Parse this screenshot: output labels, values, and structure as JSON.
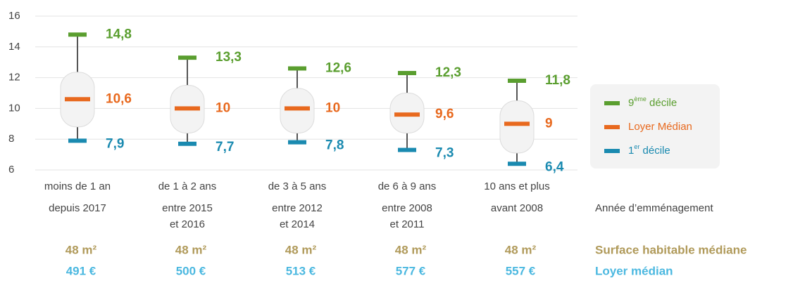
{
  "chart_data": {
    "type": "decile-box",
    "categories": [
      [
        "moins de 1 an",
        "depuis 2017"
      ],
      [
        "de 1 à 2 ans",
        "entre 2015",
        "et 2016"
      ],
      [
        "de 3 à 5 ans",
        "entre 2012",
        "et 2014"
      ],
      [
        "de 6 à 9 ans",
        "entre 2008",
        "et 2011"
      ],
      [
        "10 ans et plus",
        "avant 2008"
      ]
    ],
    "x_label": "Année d’emménagement",
    "ylim": [
      6,
      16
    ],
    "yticks": [
      6,
      8,
      10,
      12,
      14,
      16
    ],
    "grid": true,
    "box_color": "#f3f3f3",
    "q3": [
      12.35,
      11.5,
      11.3,
      11.0,
      10.5
    ],
    "q1": [
      8.8,
      8.4,
      8.4,
      8.4,
      7.1
    ],
    "series": [
      {
        "name": [
          "9",
          "ème",
          " décile"
        ],
        "color": "#5a9e2f",
        "values": [
          14.8,
          13.3,
          12.6,
          12.3,
          11.8
        ],
        "value_labels": [
          "14,8",
          "13,3",
          "12,6",
          "12,3",
          "11,8"
        ]
      },
      {
        "name": [
          "Loyer Médian"
        ],
        "color": "#e8691e",
        "values": [
          10.6,
          10,
          10,
          9.6,
          9
        ],
        "value_labels": [
          "10,6",
          "10",
          "10",
          "9,6",
          "9"
        ]
      },
      {
        "name": [
          "1",
          "er",
          " décile"
        ],
        "color": "#1a8ab0",
        "values": [
          7.9,
          7.7,
          7.8,
          7.3,
          6.4
        ],
        "value_labels": [
          "7,9",
          "7,7",
          "7,8",
          "7,3",
          "6,4"
        ]
      }
    ],
    "legend": "right",
    "rows": [
      {
        "label": "Surface habitable médiane",
        "color": "#b09a5a",
        "values": [
          "48 m²",
          "48 m²",
          "48 m²",
          "48 m²",
          "48 m²"
        ]
      },
      {
        "label": "Loyer médian",
        "color": "#4bb8e0",
        "values": [
          "491 €",
          "500 €",
          "513 €",
          "577 €",
          "557 €"
        ]
      }
    ]
  }
}
